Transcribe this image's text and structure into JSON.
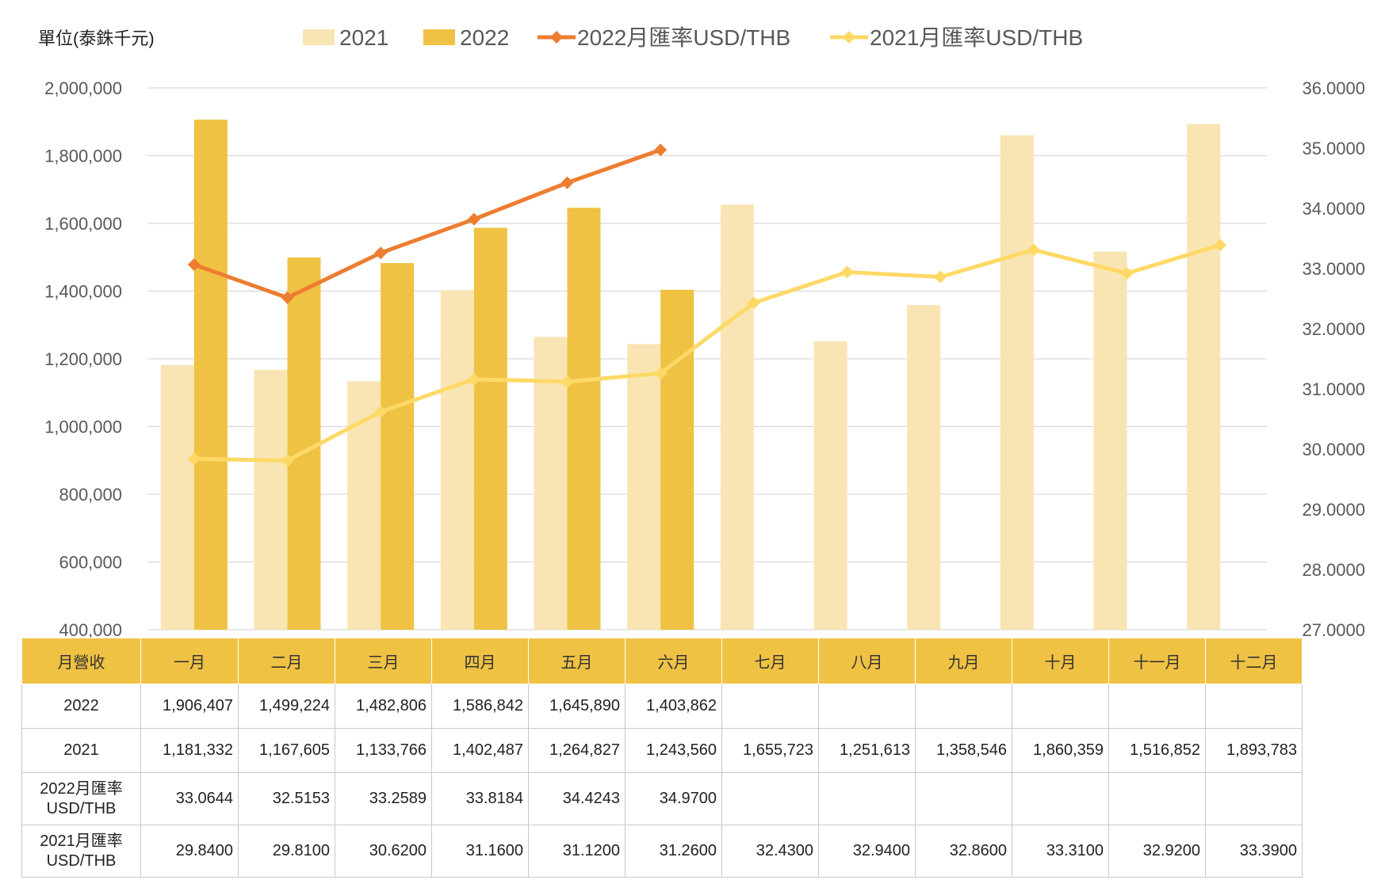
{
  "chart_data": {
    "type": "bar",
    "unit_label": "單位(泰銖千元)",
    "categories": [
      "一月",
      "二月",
      "三月",
      "四月",
      "五月",
      "六月",
      "七月",
      "八月",
      "九月",
      "十月",
      "十一月",
      "十二月"
    ],
    "series": [
      {
        "name": "2021",
        "kind": "bar",
        "axis": "left",
        "color": "#f8e5b3",
        "values": [
          1181332,
          1167605,
          1133766,
          1402487,
          1264827,
          1243560,
          1655723,
          1251613,
          1358546,
          1860359,
          1516852,
          1893783
        ]
      },
      {
        "name": "2022",
        "kind": "bar",
        "axis": "left",
        "color": "#f0c243",
        "values": [
          1906407,
          1499224,
          1482806,
          1586842,
          1645890,
          1403862,
          null,
          null,
          null,
          null,
          null,
          null
        ]
      },
      {
        "name": "2022月匯率USD/THB",
        "kind": "line",
        "axis": "right",
        "color": "#ed7d31",
        "values": [
          33.0644,
          32.5153,
          33.2589,
          33.8184,
          34.4243,
          34.97,
          null,
          null,
          null,
          null,
          null,
          null
        ]
      },
      {
        "name": "2021月匯率USD/THB",
        "kind": "line",
        "axis": "right",
        "color": "#ffd966",
        "values": [
          29.84,
          29.81,
          30.62,
          31.16,
          31.12,
          31.26,
          32.43,
          32.94,
          32.86,
          33.31,
          32.92,
          33.39
        ]
      }
    ],
    "y_left": {
      "min": 400000,
      "max": 2000000,
      "step": 200000,
      "tick_labels": [
        "400,000",
        "600,000",
        "800,000",
        "1,000,000",
        "1,200,000",
        "1,400,000",
        "1,600,000",
        "1,800,000",
        "2,000,000"
      ]
    },
    "y_right": {
      "min": 27,
      "max": 36,
      "step": 1,
      "tick_labels": [
        "27.0000",
        "28.0000",
        "29.0000",
        "30.0000",
        "31.0000",
        "32.0000",
        "33.0000",
        "34.0000",
        "35.0000",
        "36.0000"
      ]
    },
    "grid": true,
    "legend_position": "top"
  },
  "table": {
    "header_label": "月營收",
    "rows": [
      {
        "label": "2022",
        "label_lines": [
          "2022"
        ],
        "cells": [
          "1,906,407",
          "1,499,224",
          "1,482,806",
          "1,586,842",
          "1,645,890",
          "1,403,862",
          "",
          "",
          "",
          "",
          "",
          ""
        ]
      },
      {
        "label": "2021",
        "label_lines": [
          "2021"
        ],
        "cells": [
          "1,181,332",
          "1,167,605",
          "1,133,766",
          "1,402,487",
          "1,264,827",
          "1,243,560",
          "1,655,723",
          "1,251,613",
          "1,358,546",
          "1,860,359",
          "1,516,852",
          "1,893,783"
        ]
      },
      {
        "label": "2022月匯率USD/THB",
        "label_lines": [
          "2022月匯率",
          "USD/THB"
        ],
        "cells": [
          "33.0644",
          "32.5153",
          "33.2589",
          "33.8184",
          "34.4243",
          "34.9700",
          "",
          "",
          "",
          "",
          "",
          ""
        ]
      },
      {
        "label": "2021月匯率USD/THB",
        "label_lines": [
          "2021月匯率",
          "USD/THB"
        ],
        "cells": [
          "29.8400",
          "29.8100",
          "30.6200",
          "31.1600",
          "31.1200",
          "31.2600",
          "32.4300",
          "32.9400",
          "32.8600",
          "33.3100",
          "32.9200",
          "33.3900"
        ]
      }
    ]
  }
}
